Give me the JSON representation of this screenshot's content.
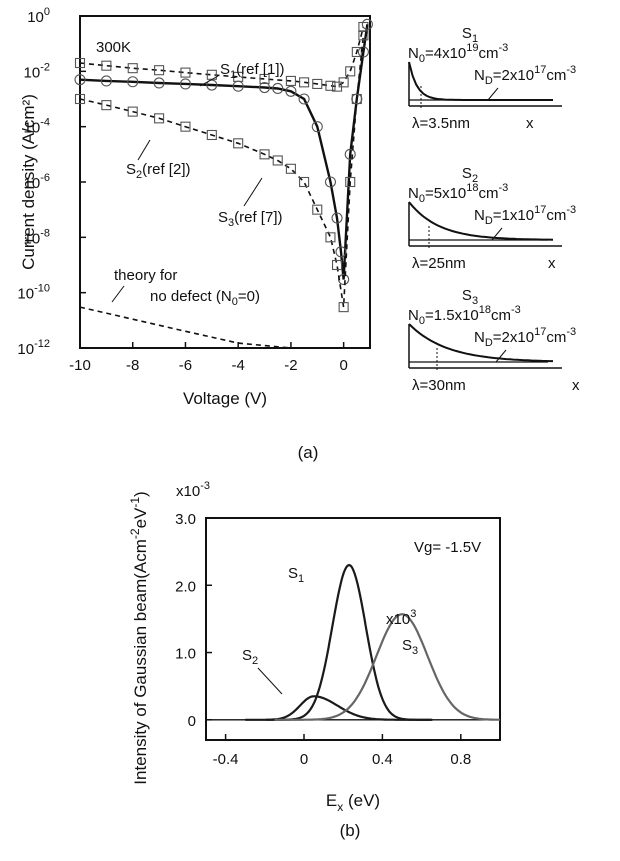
{
  "chart_data": [
    {
      "panel": "(a)",
      "type": "line",
      "xlabel": "Voltage (V)",
      "ylabel": "Current density (A/cm²)",
      "yscale": "log",
      "xlim": [
        -10,
        1
      ],
      "ylim": [
        1e-12,
        1
      ],
      "x_ticks": [
        "-10",
        "-8",
        "-6",
        "-4",
        "-2",
        "0"
      ],
      "y_ticks": [
        {
          "base": "10",
          "exp": "0"
        },
        {
          "base": "10",
          "exp": "-2"
        },
        {
          "base": "10",
          "exp": "-4"
        },
        {
          "base": "10",
          "exp": "-6"
        },
        {
          "base": "10",
          "exp": "-8"
        },
        {
          "base": "10",
          "exp": "-10"
        },
        {
          "base": "10",
          "exp": "-12"
        }
      ],
      "temperature_label": "300K",
      "annotations": {
        "s1": {
          "main": "S",
          "sub": "1",
          "rest": "(ref [1])"
        },
        "s2": {
          "main": "S",
          "sub": "2",
          "rest": "(ref [2])"
        },
        "s3": {
          "main": "S",
          "sub": "3",
          "rest": "(ref [7])"
        },
        "theory_line1": "theory for",
        "theory_line2": "no defect (N",
        "theory_sub": "0",
        "theory_rest": "=0)"
      },
      "series": [
        {
          "marker": "square",
          "style": "dashed",
          "x": [
            -10,
            -9,
            -8,
            -7,
            -6,
            -5,
            -4,
            -3,
            -2,
            -1.5,
            -1,
            -0.5,
            -0.25,
            0,
            0.25,
            0.5,
            0.75
          ],
          "y": [
            0.02,
            0.016,
            0.013,
            0.011,
            0.009,
            0.0075,
            0.0063,
            0.0053,
            0.0045,
            0.004,
            0.0035,
            0.003,
            0.0028,
            0.004,
            0.01,
            0.05,
            0.4
          ]
        },
        {
          "marker": "circle",
          "style": "solid",
          "x": [
            -10,
            -9,
            -8,
            -7,
            -6,
            -5,
            -4,
            -3,
            -2.5,
            -2,
            -1.5,
            -1,
            -0.5,
            -0.25,
            -0.1,
            0,
            0.25,
            0.5,
            0.75,
            0.9
          ],
          "y": [
            0.005,
            0.0045,
            0.0042,
            0.0038,
            0.0035,
            0.0032,
            0.0029,
            0.0026,
            0.0024,
            0.0019,
            0.001,
            0.0001,
            1e-06,
            5e-08,
            3e-09,
            3e-10,
            1e-05,
            0.001,
            0.05,
            0.5
          ]
        },
        {
          "marker": "square",
          "style": "dashed",
          "x": [
            -10,
            -9,
            -8,
            -7,
            -6,
            -5,
            -4,
            -3,
            -2.5,
            -2,
            -1.5,
            -1,
            -0.5,
            -0.25,
            0,
            0.25,
            0.5,
            0.75
          ],
          "y": [
            0.001,
            0.0006,
            0.00035,
            0.0002,
            0.0001,
            5e-05,
            2.5e-05,
            1e-05,
            6e-06,
            3e-06,
            1e-06,
            1e-07,
            1e-08,
            1e-09,
            3e-11,
            1e-06,
            0.001,
            0.2
          ]
        },
        {
          "marker": "none",
          "style": "dashed",
          "x": [
            -10,
            -8,
            -6,
            -4,
            -2,
            0
          ],
          "y": [
            3e-11,
            1.1e-11,
            4e-12,
            1.5e-12,
            6e-13,
            2e-13
          ]
        }
      ]
    },
    {
      "panel": "(b)",
      "type": "line",
      "xlabel_main": "E",
      "xlabel_sub": "x",
      "xlabel_rest": " (eV)",
      "ylabel_main": "Intensity of Gaussian beam(Acm",
      "ylabel_exp": "-2",
      "ylabel_mid": "eV",
      "ylabel_exp2": "-1",
      "ylabel_end": ")",
      "multiplier": {
        "base": "x10",
        "exp": "-3"
      },
      "xlim": [
        -0.5,
        1.0
      ],
      "ylim": [
        -0.3,
        3.0
      ],
      "x_ticks": [
        "-0.4",
        "0",
        "0.4",
        "0.8"
      ],
      "y_ticks": [
        "3.0",
        "2.0",
        "1.0",
        "0"
      ],
      "vg_label": "Vg= -1.5V",
      "x103": {
        "base": "x10",
        "exp": "3"
      },
      "series": [
        {
          "name_main": "S",
          "name_sub": "1",
          "gray": "#1a1a1a",
          "peak_x": 0.23,
          "peak_y": 2.3,
          "sigma_left": 0.085,
          "sigma_right": 0.085
        },
        {
          "name_main": "S",
          "name_sub": "2",
          "gray": "#1a1a1a",
          "peak_x": 0.05,
          "peak_y": 0.35,
          "sigma_left": 0.07,
          "sigma_right": 0.12
        },
        {
          "name_main": "S",
          "name_sub": "3",
          "gray": "#666666",
          "peak_x": 0.5,
          "peak_y": 1.57,
          "sigma_left": 0.13,
          "sigma_right": 0.13
        }
      ]
    }
  ],
  "insets": [
    {
      "title_main": "S",
      "title_sub": "1",
      "n0_pre": "N",
      "n0_sub": "0",
      "n0_val": "=4x10",
      "n0_exp": "19",
      "n0_unit": "cm",
      "n0_uexp": "-3",
      "nd_pre": "N",
      "nd_sub": "D",
      "nd_val": "=2x10",
      "nd_exp": "17",
      "nd_unit": "cm",
      "nd_uexp": "-3",
      "lambda": "λ=3.5nm",
      "x_label": "x"
    },
    {
      "title_main": "S",
      "title_sub": "2",
      "n0_pre": "N",
      "n0_sub": "0",
      "n0_val": "=5x10",
      "n0_exp": "18",
      "n0_unit": "cm",
      "n0_uexp": "-3",
      "nd_pre": "N",
      "nd_sub": "D",
      "nd_val": "=1x10",
      "nd_exp": "17",
      "nd_unit": "cm",
      "nd_uexp": "-3",
      "lambda": "λ=25nm",
      "x_label": "x"
    },
    {
      "title_main": "S",
      "title_sub": "3",
      "n0_pre": "N",
      "n0_sub": "0",
      "n0_val": "=1.5x10",
      "n0_exp": "18",
      "n0_unit": "cm",
      "n0_uexp": "-3",
      "nd_pre": "N",
      "nd_sub": "D",
      "nd_val": "=2x10",
      "nd_exp": "17",
      "nd_unit": "cm",
      "nd_uexp": "-3",
      "lambda": "λ=30nm",
      "x_label": "x"
    }
  ],
  "captions": {
    "a": "(a)",
    "b": "(b)"
  }
}
